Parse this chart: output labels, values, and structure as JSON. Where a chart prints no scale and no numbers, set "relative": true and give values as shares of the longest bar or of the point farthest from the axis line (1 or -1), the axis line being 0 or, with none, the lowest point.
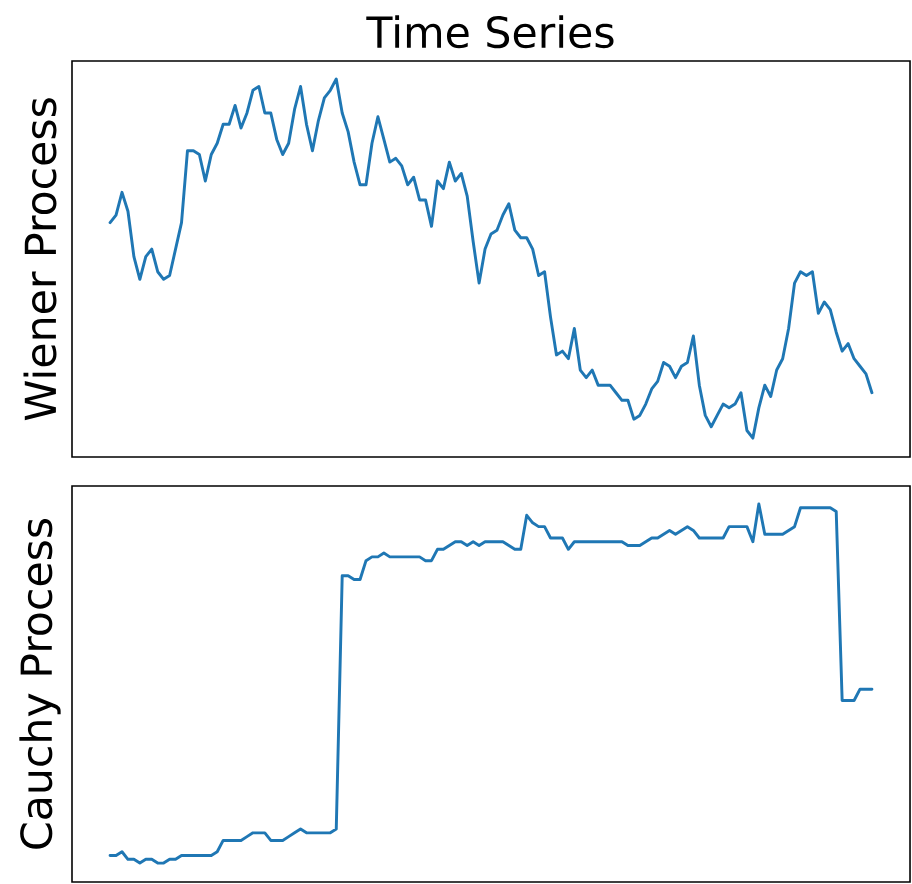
{
  "chart_data": [
    {
      "type": "line",
      "title": "Time Series",
      "ylabel": "Wiener Process",
      "relative": true,
      "categories": [
        null,
        null,
        null,
        null,
        null,
        null,
        null,
        null,
        null,
        null,
        null,
        null,
        null,
        null,
        null,
        null,
        null,
        null,
        null,
        null,
        null,
        null,
        null,
        null,
        null,
        null,
        null,
        null,
        null,
        null,
        null,
        null,
        null,
        null,
        null,
        null,
        null,
        null,
        null,
        null,
        null,
        null,
        null,
        null,
        null,
        null,
        null,
        null,
        null,
        null,
        null,
        null,
        null,
        null,
        null,
        null,
        null,
        null,
        null,
        null,
        null,
        null,
        null,
        null,
        null,
        null,
        null,
        null,
        null,
        null,
        null,
        null,
        null,
        null,
        null,
        null,
        null,
        null,
        null,
        null,
        null,
        null,
        null,
        null,
        null,
        null,
        null,
        null,
        null,
        null,
        null,
        null,
        null,
        null,
        null,
        null,
        null,
        null,
        null,
        null,
        null,
        null,
        null,
        null,
        null,
        null,
        null,
        null,
        null,
        null,
        null,
        null,
        null,
        null,
        null,
        null,
        null,
        null,
        null,
        null,
        null,
        null,
        null,
        null,
        null,
        null,
        null,
        null,
        null
      ],
      "series": [
        {
          "color": "#1f77b4",
          "values": [
            0.62,
            0.64,
            0.7,
            0.65,
            0.53,
            0.47,
            0.53,
            0.55,
            0.49,
            0.47,
            0.48,
            0.55,
            0.62,
            0.81,
            0.81,
            0.8,
            0.73,
            0.8,
            0.83,
            0.88,
            0.88,
            0.93,
            0.87,
            0.91,
            0.97,
            0.98,
            0.91,
            0.91,
            0.84,
            0.8,
            0.83,
            0.92,
            0.98,
            0.88,
            0.81,
            0.89,
            0.95,
            0.97,
            1,
            0.91,
            0.86,
            0.78,
            0.72,
            0.72,
            0.83,
            0.9,
            0.84,
            0.78,
            0.79,
            0.77,
            0.72,
            0.74,
            0.68,
            0.68,
            0.61,
            0.73,
            0.71,
            0.78,
            0.73,
            0.75,
            0.69,
            0.57,
            0.46,
            0.55,
            0.59,
            0.6,
            0.64,
            0.67,
            0.6,
            0.58,
            0.58,
            0.55,
            0.48,
            0.49,
            0.37,
            0.27,
            0.28,
            0.26,
            0.34,
            0.23,
            0.21,
            0.23,
            0.19,
            0.19,
            0.19,
            0.17,
            0.15,
            0.15,
            0.1,
            0.11,
            0.14,
            0.18,
            0.2,
            0.25,
            0.24,
            0.21,
            0.24,
            0.25,
            0.32,
            0.19,
            0.11,
            0.08,
            0.11,
            0.14,
            0.13,
            0.14,
            0.17,
            0.07,
            0.05,
            0.13,
            0.19,
            0.16,
            0.23,
            0.26,
            0.34,
            0.46,
            0.49,
            0.48,
            0.49,
            0.38,
            0.41,
            0.39,
            0.33,
            0.28,
            0.3,
            0.26,
            0.24,
            0.22,
            0.17
          ]
        }
      ]
    },
    {
      "type": "line",
      "ylabel": "Cauchy Process",
      "relative": true,
      "categories": [
        null,
        null,
        null,
        null,
        null,
        null,
        null,
        null,
        null,
        null,
        null,
        null,
        null,
        null,
        null,
        null,
        null,
        null,
        null,
        null,
        null,
        null,
        null,
        null,
        null,
        null,
        null,
        null,
        null,
        null,
        null,
        null,
        null,
        null,
        null,
        null,
        null,
        null,
        null,
        null,
        null,
        null,
        null,
        null,
        null,
        null,
        null,
        null,
        null,
        null,
        null,
        null,
        null,
        null,
        null,
        null,
        null,
        null,
        null,
        null,
        null,
        null,
        null,
        null,
        null,
        null,
        null,
        null,
        null,
        null,
        null,
        null,
        null,
        null,
        null,
        null,
        null,
        null,
        null,
        null,
        null,
        null,
        null,
        null,
        null,
        null,
        null,
        null,
        null,
        null,
        null,
        null,
        null,
        null,
        null,
        null,
        null,
        null,
        null,
        null,
        null,
        null,
        null,
        null,
        null,
        null,
        null,
        null,
        null,
        null,
        null,
        null,
        null,
        null,
        null,
        null,
        null,
        null,
        null,
        null,
        null,
        null,
        null,
        null,
        null,
        null,
        null,
        null,
        null
      ],
      "series": [
        {
          "color": "#1f77b4",
          "values": [
            0.07,
            0.07,
            0.08,
            0.06,
            0.06,
            0.05,
            0.06,
            0.06,
            0.05,
            0.05,
            0.06,
            0.06,
            0.07,
            0.07,
            0.07,
            0.07,
            0.07,
            0.07,
            0.08,
            0.11,
            0.11,
            0.11,
            0.11,
            0.12,
            0.13,
            0.13,
            0.13,
            0.11,
            0.11,
            0.11,
            0.12,
            0.13,
            0.14,
            0.13,
            0.13,
            0.13,
            0.13,
            0.13,
            0.14,
            0.81,
            0.81,
            0.8,
            0.8,
            0.85,
            0.86,
            0.86,
            0.87,
            0.86,
            0.86,
            0.86,
            0.86,
            0.86,
            0.86,
            0.85,
            0.85,
            0.88,
            0.88,
            0.89,
            0.9,
            0.9,
            0.89,
            0.9,
            0.89,
            0.9,
            0.9,
            0.9,
            0.9,
            0.89,
            0.88,
            0.88,
            0.97,
            0.95,
            0.94,
            0.94,
            0.91,
            0.91,
            0.91,
            0.88,
            0.9,
            0.9,
            0.9,
            0.9,
            0.9,
            0.9,
            0.9,
            0.9,
            0.9,
            0.89,
            0.89,
            0.89,
            0.9,
            0.91,
            0.91,
            0.92,
            0.93,
            0.92,
            0.93,
            0.94,
            0.93,
            0.91,
            0.91,
            0.91,
            0.91,
            0.91,
            0.94,
            0.94,
            0.94,
            0.94,
            0.9,
            1,
            0.92,
            0.92,
            0.92,
            0.92,
            0.93,
            0.94,
            0.99,
            0.99,
            0.99,
            0.99,
            0.99,
            0.99,
            0.98,
            0.48,
            0.48,
            0.48,
            0.51,
            0.51,
            0.51
          ]
        }
      ]
    }
  ]
}
